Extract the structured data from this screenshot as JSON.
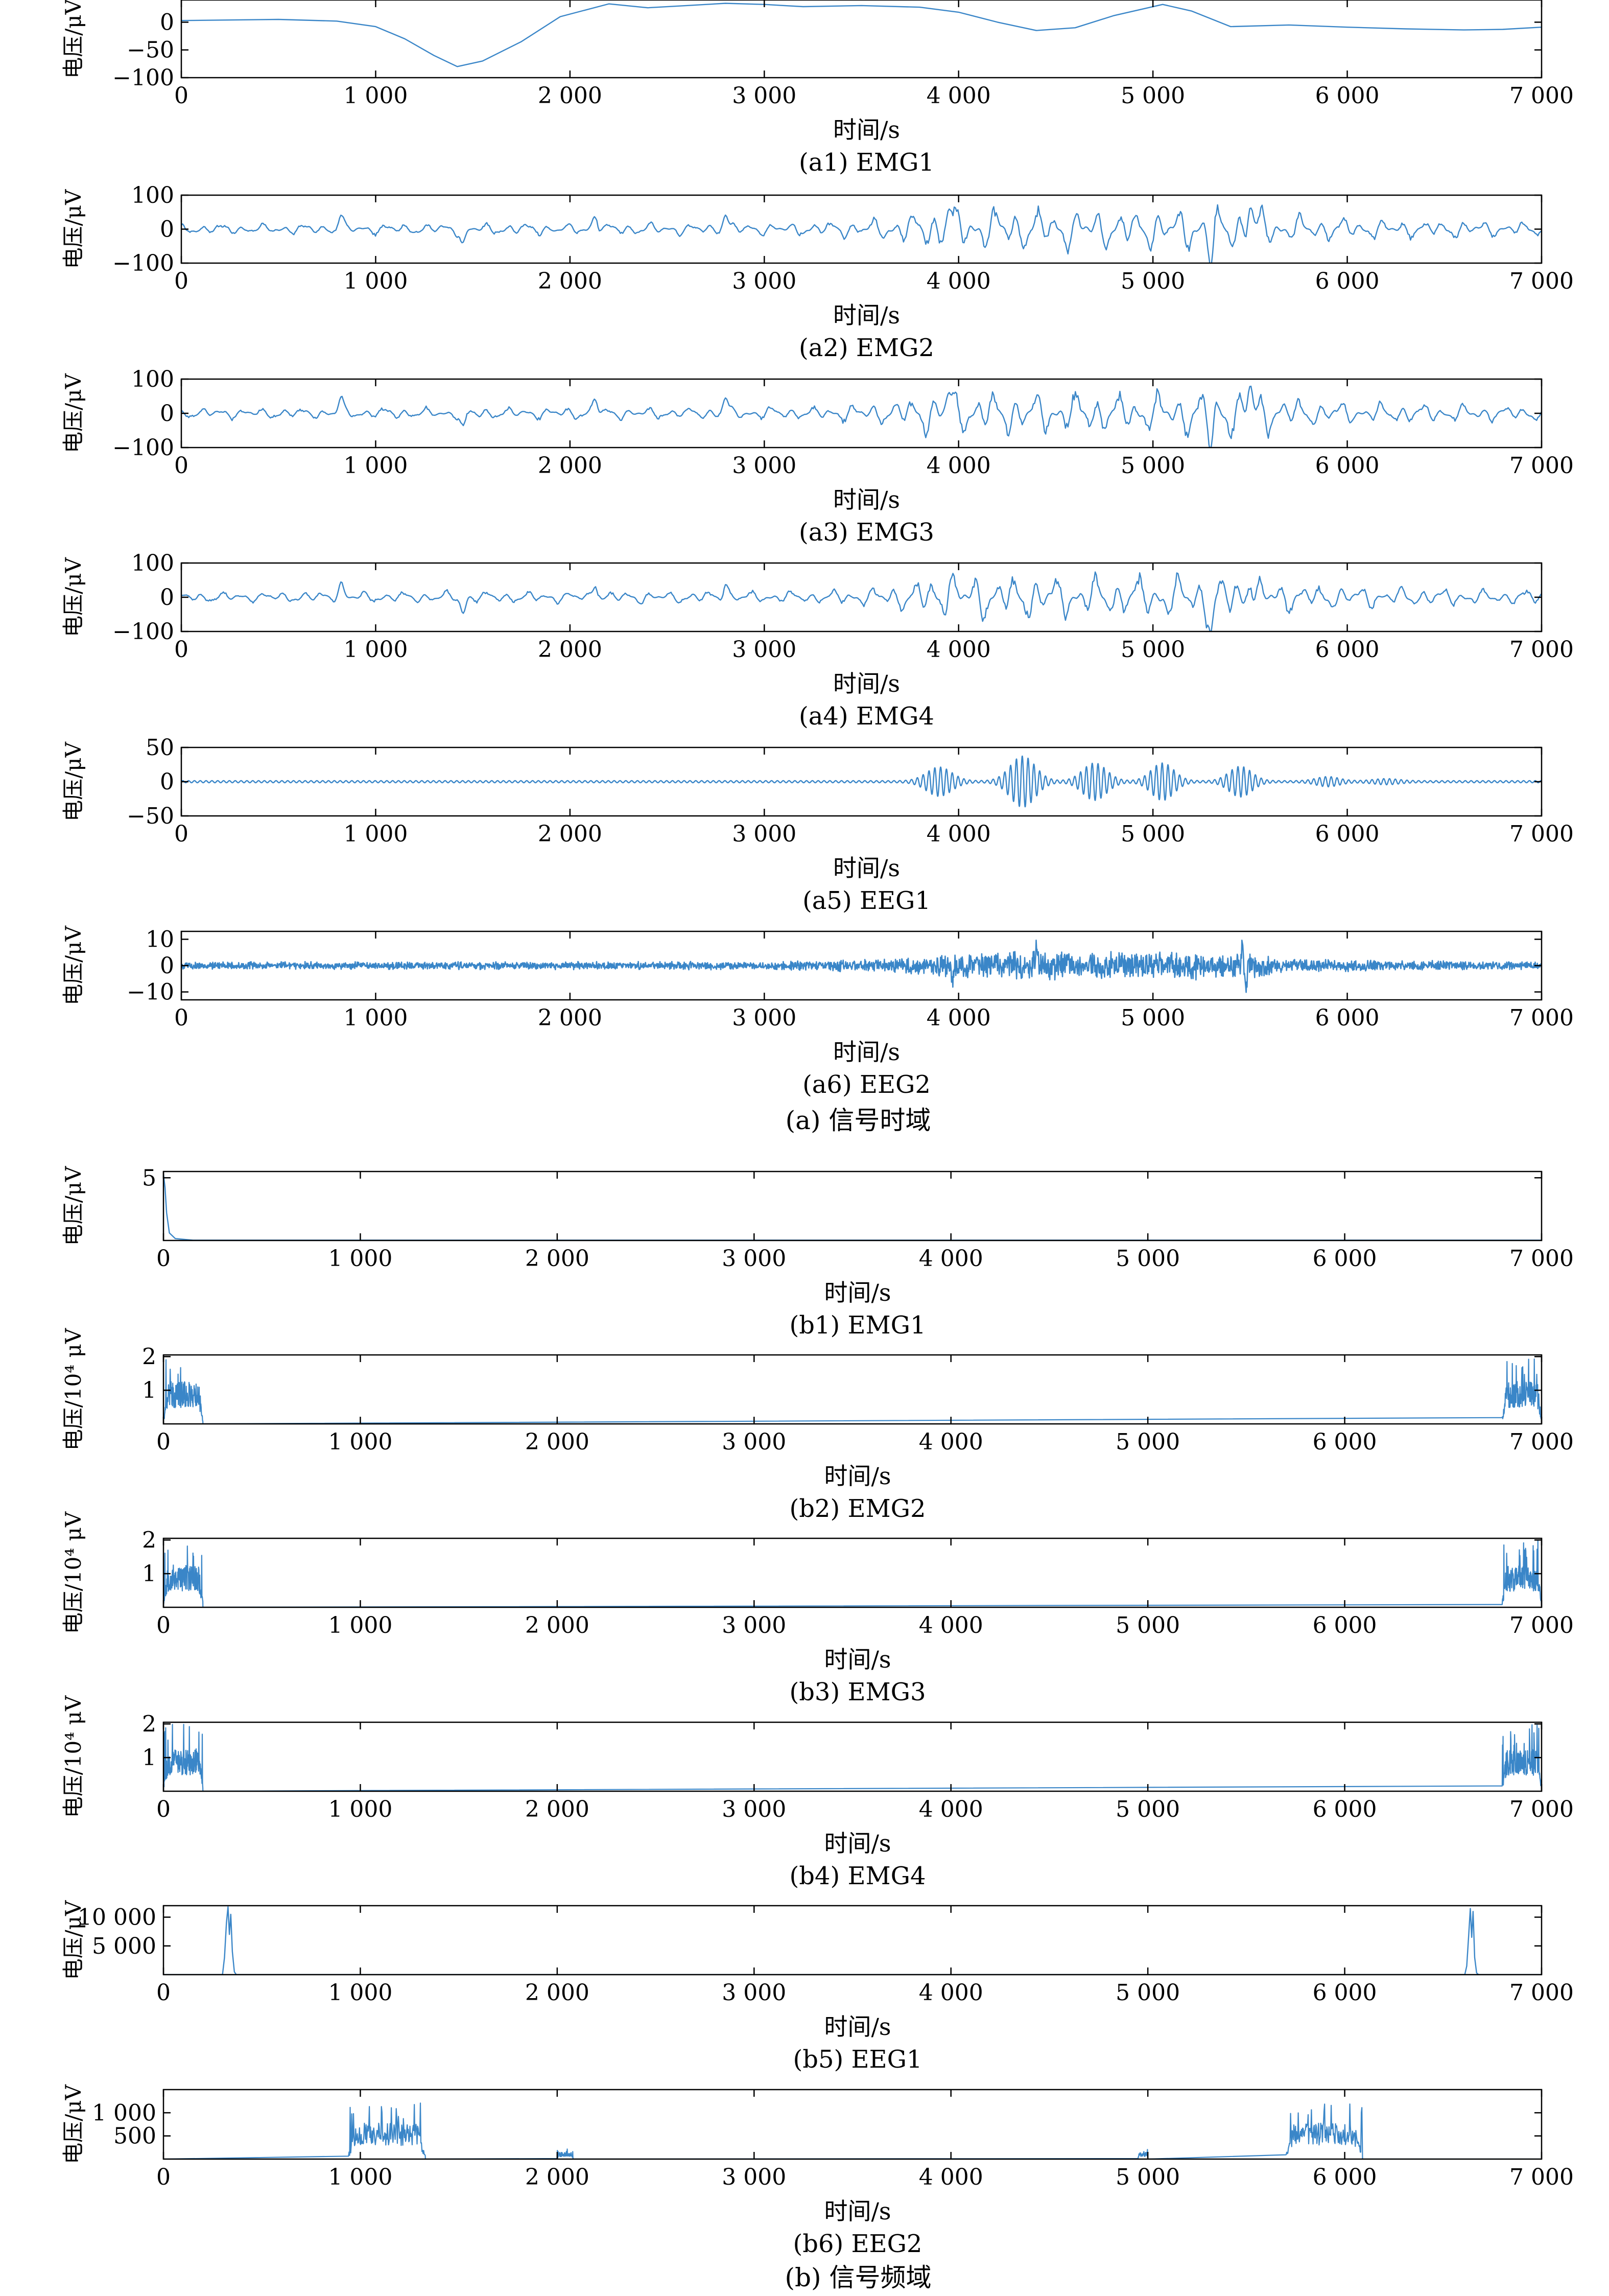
{
  "figure": {
    "group_a_caption": "(a) 信号时域",
    "group_b_caption": "(b) 信号频域"
  },
  "colors": {
    "line": "#3a86c8",
    "frame": "#000000"
  },
  "chart_data": [
    {
      "id": "a1",
      "type": "line",
      "caption": "(a1) EMG1",
      "xlabel": "时间/s",
      "ylabel": "电压/μV",
      "xlim": [
        0,
        7000
      ],
      "ylim": [
        -100,
        40
      ],
      "xticks": [
        0,
        1000,
        2000,
        3000,
        4000,
        5000,
        6000,
        7000
      ],
      "xticklabels": [
        "0",
        "1 000",
        "2 000",
        "3 000",
        "4 000",
        "5 000",
        "6 000",
        "7 000"
      ],
      "yticks": [
        0,
        -50,
        -100
      ],
      "yticklabels": [
        "0",
        "−50",
        "−100"
      ],
      "series": [
        {
          "kind": "points",
          "x": [
            0,
            500,
            800,
            1000,
            1150,
            1300,
            1420,
            1550,
            1750,
            1950,
            2200,
            2400,
            2600,
            2800,
            3000,
            3200,
            3500,
            3800,
            4000,
            4200,
            4400,
            4600,
            4800,
            5050,
            5200,
            5400,
            5700,
            6000,
            6300,
            6600,
            6800,
            7000
          ],
          "y": [
            3,
            5,
            2,
            -8,
            -30,
            -60,
            -80,
            -70,
            -35,
            10,
            33,
            26,
            30,
            34,
            32,
            28,
            30,
            27,
            18,
            0,
            -15,
            -10,
            12,
            32,
            20,
            -8,
            -5,
            -9,
            -12,
            -14,
            -13,
            -9
          ]
        }
      ]
    },
    {
      "id": "a2",
      "type": "line",
      "caption": "(a2) EMG2",
      "xlabel": "时间/s",
      "ylabel": "电压/μV",
      "xlim": [
        0,
        7000
      ],
      "ylim": [
        -100,
        100
      ],
      "xticks": [
        0,
        1000,
        2000,
        3000,
        4000,
        5000,
        6000,
        7000
      ],
      "xticklabels": [
        "0",
        "1 000",
        "2 000",
        "3 000",
        "4 000",
        "5 000",
        "6 000",
        "7 000"
      ],
      "yticks": [
        100,
        0,
        -100
      ],
      "yticklabels": [
        "100",
        "0",
        "−100"
      ],
      "series": [
        {
          "kind": "gen",
          "seed": 11,
          "n": 1100,
          "freq": 0.6,
          "amp": 14,
          "env": [
            [
              0,
              1
            ],
            [
              3200,
              1.2
            ],
            [
              3600,
              2
            ],
            [
              3900,
              4.2
            ],
            [
              4400,
              4
            ],
            [
              5000,
              4
            ],
            [
              5500,
              4.5
            ],
            [
              5800,
              2.2
            ],
            [
              7000,
              1.4
            ]
          ],
          "spikes": [
            [
              820,
              40
            ],
            [
              1450,
              -45
            ],
            [
              2130,
              42
            ],
            [
              2800,
              45
            ],
            [
              3950,
              60
            ],
            [
              5300,
              -80
            ],
            [
              5500,
              75
            ]
          ]
        }
      ]
    },
    {
      "id": "a3",
      "type": "line",
      "caption": "(a3) EMG3",
      "xlabel": "时间/s",
      "ylabel": "电压/μV",
      "xlim": [
        0,
        7000
      ],
      "ylim": [
        -100,
        100
      ],
      "xticks": [
        0,
        1000,
        2000,
        3000,
        4000,
        5000,
        6000,
        7000
      ],
      "xticklabels": [
        "0",
        "1 000",
        "2 000",
        "3 000",
        "4 000",
        "5 000",
        "6 000",
        "7 000"
      ],
      "yticks": [
        100,
        0,
        -100
      ],
      "yticklabels": [
        "100",
        "0",
        "−100"
      ],
      "series": [
        {
          "kind": "gen",
          "seed": 23,
          "n": 1100,
          "freq": 0.6,
          "amp": 14,
          "env": [
            [
              0,
              1
            ],
            [
              3200,
              1.2
            ],
            [
              3600,
              2
            ],
            [
              3900,
              4.2
            ],
            [
              4400,
              4
            ],
            [
              5000,
              4
            ],
            [
              5500,
              4.5
            ],
            [
              5800,
              2.2
            ],
            [
              7000,
              1.4
            ]
          ],
          "spikes": [
            [
              820,
              40
            ],
            [
              1450,
              -45
            ],
            [
              2130,
              42
            ],
            [
              2800,
              45
            ],
            [
              3950,
              60
            ],
            [
              5300,
              -80
            ],
            [
              5500,
              75
            ]
          ]
        }
      ]
    },
    {
      "id": "a4",
      "type": "line",
      "caption": "(a4) EMG4",
      "xlabel": "时间/s",
      "ylabel": "电压/μV",
      "xlim": [
        0,
        7000
      ],
      "ylim": [
        -100,
        100
      ],
      "xticks": [
        0,
        1000,
        2000,
        3000,
        4000,
        5000,
        6000,
        7000
      ],
      "xticklabels": [
        "0",
        "1 000",
        "2 000",
        "3 000",
        "4 000",
        "5 000",
        "6 000",
        "7 000"
      ],
      "yticks": [
        100,
        0,
        -100
      ],
      "yticklabels": [
        "100",
        "0",
        "−100"
      ],
      "series": [
        {
          "kind": "gen",
          "seed": 37,
          "n": 1100,
          "freq": 0.6,
          "amp": 14,
          "env": [
            [
              0,
              1
            ],
            [
              3200,
              1.2
            ],
            [
              3600,
              2
            ],
            [
              3900,
              4.2
            ],
            [
              4400,
              4
            ],
            [
              5000,
              4
            ],
            [
              5500,
              4.5
            ],
            [
              5800,
              2.2
            ],
            [
              7000,
              1.4
            ]
          ],
          "spikes": [
            [
              820,
              40
            ],
            [
              1450,
              -45
            ],
            [
              2130,
              42
            ],
            [
              2800,
              45
            ],
            [
              3950,
              60
            ],
            [
              5300,
              -80
            ],
            [
              5500,
              75
            ]
          ]
        }
      ]
    },
    {
      "id": "a5",
      "type": "line",
      "caption": "(a5) EEG1",
      "xlabel": "时间/s",
      "ylabel": "电压/μV",
      "xlim": [
        0,
        7000
      ],
      "ylim": [
        -50,
        50
      ],
      "xticks": [
        0,
        1000,
        2000,
        3000,
        4000,
        5000,
        6000,
        7000
      ],
      "xticklabels": [
        "0",
        "1 000",
        "2 000",
        "3 000",
        "4 000",
        "5 000",
        "6 000",
        "7 000"
      ],
      "yticks": [
        50,
        0,
        -50
      ],
      "yticklabels": [
        "50",
        "0",
        "−50"
      ],
      "series": [
        {
          "kind": "osc",
          "base": 1.5,
          "period": 30,
          "bumps": [
            [
              3900,
              20,
              200
            ],
            [
              4330,
              36,
              200
            ],
            [
              4700,
              26,
              190
            ],
            [
              5050,
              26,
              180
            ],
            [
              5450,
              21,
              180
            ],
            [
              5900,
              6,
              180
            ],
            [
              6200,
              3,
              200
            ]
          ]
        }
      ]
    },
    {
      "id": "a6",
      "type": "line",
      "caption": "(a6) EEG2",
      "xlabel": "时间/s",
      "ylabel": "电压/μV",
      "xlim": [
        0,
        7000
      ],
      "ylim": [
        -13,
        13
      ],
      "xticks": [
        0,
        1000,
        2000,
        3000,
        4000,
        5000,
        6000,
        7000
      ],
      "xticklabels": [
        "0",
        "1 000",
        "2 000",
        "3 000",
        "4 000",
        "5 000",
        "6 000",
        "7 000"
      ],
      "yticks": [
        10,
        0,
        -10
      ],
      "yticklabels": [
        "10",
        "0",
        "−10"
      ],
      "series": [
        {
          "kind": "noise",
          "seed": 5,
          "n": 3200,
          "amp": 1.1,
          "width": 2.6,
          "env": [
            [
              0,
              1
            ],
            [
              3000,
              1.1
            ],
            [
              3600,
              1.8
            ],
            [
              4000,
              3.2
            ],
            [
              4400,
              4.4
            ],
            [
              5000,
              3.8
            ],
            [
              5500,
              3.4
            ],
            [
              5700,
              2
            ],
            [
              6200,
              1.4
            ],
            [
              7000,
              1.1
            ]
          ],
          "spikes": [
            [
              5460,
              9
            ],
            [
              5480,
              -9
            ],
            [
              4400,
              8.5
            ],
            [
              3970,
              -7
            ]
          ]
        }
      ]
    },
    {
      "id": "b1",
      "type": "line",
      "caption": "(b1) EMG1",
      "xlabel": "时间/s",
      "ylabel": "电压/μV",
      "xlim": [
        0,
        7000
      ],
      "ylim": [
        0,
        5.5
      ],
      "xticks": [
        0,
        1000,
        2000,
        3000,
        4000,
        5000,
        6000,
        7000
      ],
      "xticklabels": [
        "0",
        "1 000",
        "2 000",
        "3 000",
        "4 000",
        "5 000",
        "6 000",
        "7 000"
      ],
      "yticks": [
        5
      ],
      "yticklabels": [
        "5"
      ],
      "series": [
        {
          "kind": "points",
          "x": [
            0,
            8,
            16,
            30,
            60,
            150,
            7000
          ],
          "y": [
            5.3,
            4.2,
            2.2,
            0.6,
            0.15,
            0.02,
            0.02
          ]
        }
      ]
    },
    {
      "id": "b2",
      "type": "line",
      "caption": "(b2) EMG2",
      "xlabel": "时间/s",
      "ylabel": "电压/10⁴ μV",
      "xlim": [
        0,
        7000
      ],
      "ylim": [
        0,
        2.05
      ],
      "xticks": [
        0,
        1000,
        2000,
        3000,
        4000,
        5000,
        6000,
        7000
      ],
      "xticklabels": [
        "0",
        "1 000",
        "2 000",
        "3 000",
        "4 000",
        "5 000",
        "6 000",
        "7 000"
      ],
      "yticks": [
        2,
        1
      ],
      "yticklabels": [
        "2",
        "1"
      ],
      "series": [
        {
          "kind": "spec",
          "seed": 41,
          "bands": [
            [
              0,
              200,
              1.05
            ],
            [
              6800,
              7000,
              1.05
            ]
          ],
          "width": 2.2
        }
      ]
    },
    {
      "id": "b3",
      "type": "line",
      "caption": "(b3) EMG3",
      "xlabel": "时间/s",
      "ylabel": "电压/10⁴ μV",
      "xlim": [
        0,
        7000
      ],
      "ylim": [
        0,
        2.05
      ],
      "xticks": [
        0,
        1000,
        2000,
        3000,
        4000,
        5000,
        6000,
        7000
      ],
      "xticklabels": [
        "0",
        "1 000",
        "2 000",
        "3 000",
        "4 000",
        "5 000",
        "6 000",
        "7 000"
      ],
      "yticks": [
        2,
        1
      ],
      "yticklabels": [
        "2",
        "1"
      ],
      "series": [
        {
          "kind": "spec",
          "seed": 53,
          "bands": [
            [
              0,
              200,
              1.05
            ],
            [
              6800,
              7000,
              1.05
            ]
          ],
          "width": 2.2
        }
      ]
    },
    {
      "id": "b4",
      "type": "line",
      "caption": "(b4) EMG4",
      "xlabel": "时间/s",
      "ylabel": "电压/10⁴ μV",
      "xlim": [
        0,
        7000
      ],
      "ylim": [
        0,
        2.05
      ],
      "xticks": [
        0,
        1000,
        2000,
        3000,
        4000,
        5000,
        6000,
        7000
      ],
      "xticklabels": [
        "0",
        "1 000",
        "2 000",
        "3 000",
        "4 000",
        "5 000",
        "6 000",
        "7 000"
      ],
      "yticks": [
        2,
        1
      ],
      "yticklabels": [
        "2",
        "1"
      ],
      "series": [
        {
          "kind": "spec",
          "seed": 67,
          "bands": [
            [
              0,
              200,
              1.05
            ],
            [
              6800,
              7000,
              1.05
            ]
          ],
          "width": 2.2
        }
      ]
    },
    {
      "id": "b5",
      "type": "line",
      "caption": "(b5) EEG1",
      "xlabel": "时间/s",
      "ylabel": "电压/μV",
      "xlim": [
        0,
        7000
      ],
      "ylim": [
        0,
        12000
      ],
      "xticks": [
        0,
        1000,
        2000,
        3000,
        4000,
        5000,
        6000,
        7000
      ],
      "xticklabels": [
        "0",
        "1 000",
        "2 000",
        "3 000",
        "4 000",
        "5 000",
        "6 000",
        "7 000"
      ],
      "yticks": [
        10000,
        5000
      ],
      "yticklabels": [
        "10 000",
        "5 000"
      ],
      "series": [
        {
          "kind": "points",
          "x": [
            0,
            300,
            310,
            320,
            328,
            335,
            342,
            350,
            360,
            370,
            6610,
            6620,
            6630,
            6638,
            6645,
            6652,
            6660,
            6670,
            6680,
            7000
          ],
          "y": [
            0,
            0,
            3000,
            9000,
            11800,
            7000,
            10500,
            4000,
            500,
            0,
            0,
            1500,
            7000,
            11500,
            6500,
            11000,
            3000,
            300,
            0,
            0
          ]
        }
      ]
    },
    {
      "id": "b6",
      "type": "line",
      "caption": "(b6) EEG2",
      "xlabel": "时间/s",
      "ylabel": "电压/μV",
      "xlim": [
        0,
        7000
      ],
      "ylim": [
        0,
        1500
      ],
      "xticks": [
        0,
        1000,
        2000,
        3000,
        4000,
        5000,
        6000,
        7000
      ],
      "xticklabels": [
        "0",
        "1 000",
        "2 000",
        "3 000",
        "4 000",
        "5 000",
        "6 000",
        "7 000"
      ],
      "yticks": [
        1000,
        500
      ],
      "yticklabels": [
        "1 000",
        "500"
      ],
      "series": [
        {
          "kind": "spec",
          "seed": 79,
          "width": 2.2,
          "bands": [
            [
              940,
              1330,
              650
            ],
            [
              2000,
              2080,
              120
            ],
            [
              4950,
              5000,
              120
            ],
            [
              5700,
              6090,
              650
            ]
          ]
        }
      ]
    }
  ]
}
